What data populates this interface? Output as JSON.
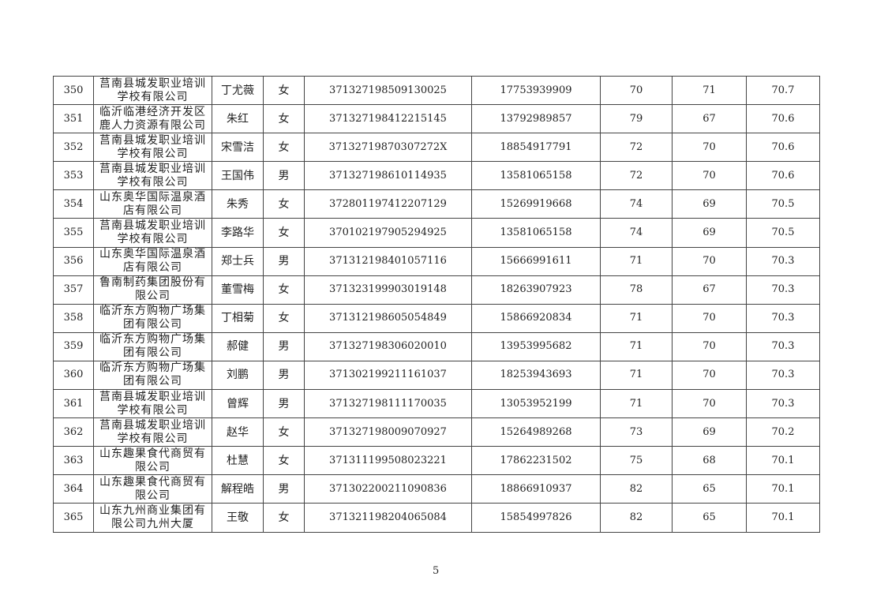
{
  "rows": [
    {
      "no": "350",
      "company": "莒南县城发职业培训学校有限公司",
      "name": "丁尤薇",
      "sex": "女",
      "id": "371327198509130025",
      "phone": "17753939909",
      "s1": "70",
      "s2": "71",
      "total": "70.7"
    },
    {
      "no": "351",
      "company": "临沂临港经济开发区鹿人力资源有限公司",
      "name": "朱红",
      "sex": "女",
      "id": "371327198412215145",
      "phone": "13792989857",
      "s1": "79",
      "s2": "67",
      "total": "70.6"
    },
    {
      "no": "352",
      "company": "莒南县城发职业培训学校有限公司",
      "name": "宋雪洁",
      "sex": "女",
      "id": "37132719870307272X",
      "phone": "18854917791",
      "s1": "72",
      "s2": "70",
      "total": "70.6"
    },
    {
      "no": "353",
      "company": "莒南县城发职业培训学校有限公司",
      "name": "王国伟",
      "sex": "男",
      "id": "371327198610114935",
      "phone": "13581065158",
      "s1": "72",
      "s2": "70",
      "total": "70.6"
    },
    {
      "no": "354",
      "company": "山东奥华国际温泉酒店有限公司",
      "name": "朱秀",
      "sex": "女",
      "id": "372801197412207129",
      "phone": "15269919668",
      "s1": "74",
      "s2": "69",
      "total": "70.5"
    },
    {
      "no": "355",
      "company": "莒南县城发职业培训学校有限公司",
      "name": "李路华",
      "sex": "女",
      "id": "370102197905294925",
      "phone": "13581065158",
      "s1": "74",
      "s2": "69",
      "total": "70.5"
    },
    {
      "no": "356",
      "company": "山东奥华国际温泉酒店有限公司",
      "name": "郑士兵",
      "sex": "男",
      "id": "371312198401057116",
      "phone": "15666991611",
      "s1": "71",
      "s2": "70",
      "total": "70.3"
    },
    {
      "no": "357",
      "company": "鲁南制药集团股份有限公司",
      "name": "董雪梅",
      "sex": "女",
      "id": "371323199903019148",
      "phone": "18263907923",
      "s1": "78",
      "s2": "67",
      "total": "70.3"
    },
    {
      "no": "358",
      "company": "临沂东方购物广场集团有限公司",
      "name": "丁相菊",
      "sex": "女",
      "id": "371312198605054849",
      "phone": "15866920834",
      "s1": "71",
      "s2": "70",
      "total": "70.3"
    },
    {
      "no": "359",
      "company": "临沂东方购物广场集团有限公司",
      "name": "郝健",
      "sex": "男",
      "id": "371327198306020010",
      "phone": "13953995682",
      "s1": "71",
      "s2": "70",
      "total": "70.3"
    },
    {
      "no": "360",
      "company": "临沂东方购物广场集团有限公司",
      "name": "刘鹏",
      "sex": "男",
      "id": "371302199211161037",
      "phone": "18253943693",
      "s1": "71",
      "s2": "70",
      "total": "70.3"
    },
    {
      "no": "361",
      "company": "莒南县城发职业培训学校有限公司",
      "name": "曾辉",
      "sex": "男",
      "id": "371327198111170035",
      "phone": "13053952199",
      "s1": "71",
      "s2": "70",
      "total": "70.3"
    },
    {
      "no": "362",
      "company": "莒南县城发职业培训学校有限公司",
      "name": "赵华",
      "sex": "女",
      "id": "371327198009070927",
      "phone": "15264989268",
      "s1": "73",
      "s2": "69",
      "total": "70.2"
    },
    {
      "no": "363",
      "company": "山东趣果食代商贸有限公司",
      "name": "杜慧",
      "sex": "女",
      "id": "371311199508023221",
      "phone": "17862231502",
      "s1": "75",
      "s2": "68",
      "total": "70.1"
    },
    {
      "no": "364",
      "company": "山东趣果食代商贸有限公司",
      "name": "解程皓",
      "sex": "男",
      "id": "371302200211090836",
      "phone": "18866910937",
      "s1": "82",
      "s2": "65",
      "total": "70.1"
    },
    {
      "no": "365",
      "company": "山东九州商业集团有限公司九州大厦",
      "name": "王敬",
      "sex": "女",
      "id": "371321198204065084",
      "phone": "15854997826",
      "s1": "82",
      "s2": "65",
      "total": "70.1"
    }
  ],
  "page_number": "5"
}
